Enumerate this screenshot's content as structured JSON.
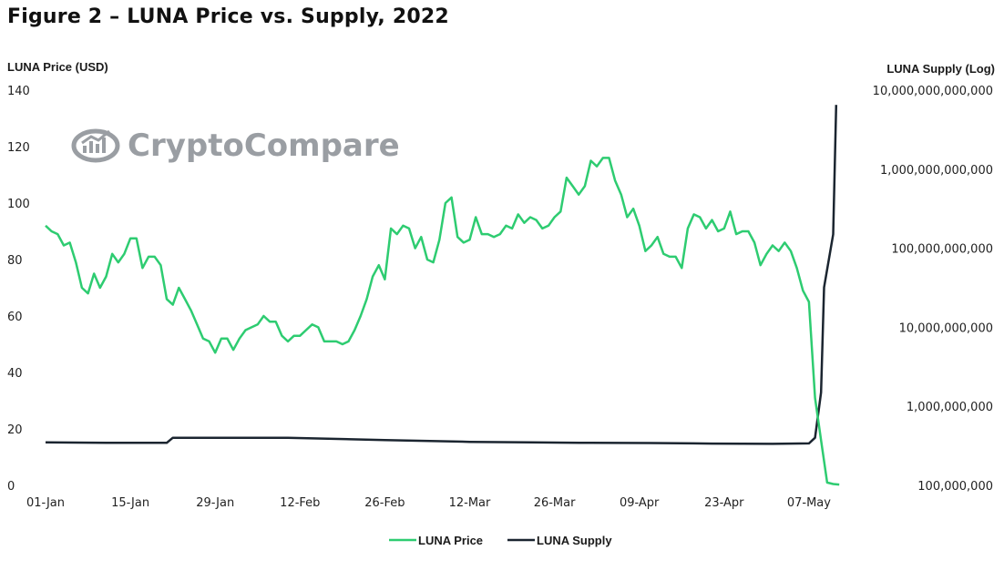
{
  "title": "Figure 2 – LUNA Price vs. Supply, 2022",
  "watermark": "CryptoCompare",
  "colors": {
    "price": "#2ecc71",
    "supply": "#1b2530",
    "watermark": "#9a9ea3"
  },
  "chart_data": {
    "type": "line",
    "title": "Figure 2 – LUNA Price vs. Supply, 2022",
    "xlabel": "",
    "ylabel": "LUNA Price (USD)",
    "y2label": "LUNA Supply (Log)",
    "ylim": [
      0,
      140
    ],
    "y2lim": [
      100000000,
      10000000000000
    ],
    "y2scale": "log",
    "x_ticks": [
      "01-Jan",
      "15-Jan",
      "29-Jan",
      "12-Feb",
      "26-Feb",
      "12-Mar",
      "26-Mar",
      "09-Apr",
      "23-Apr",
      "07-May"
    ],
    "x_tick_day_index": [
      0,
      14,
      28,
      42,
      56,
      70,
      84,
      98,
      112,
      126
    ],
    "y_ticks": [
      "0",
      "20",
      "40",
      "60",
      "80",
      "100",
      "120",
      "140"
    ],
    "y2_ticks": [
      "100,000,000",
      "1,000,000,000",
      "10,000,000,000",
      "100,000,000,000",
      "1,000,000,000,000",
      "10,000,000,000,000"
    ],
    "legend": [
      "LUNA Price",
      "LUNA Supply"
    ],
    "legend_position": "bottom-center",
    "grid": false,
    "series": [
      {
        "name": "LUNA Price",
        "axis": "left",
        "points": [
          [
            0,
            92
          ],
          [
            1,
            90
          ],
          [
            2,
            89
          ],
          [
            3,
            85
          ],
          [
            4,
            86
          ],
          [
            5,
            79
          ],
          [
            6,
            70
          ],
          [
            7,
            68
          ],
          [
            8,
            75
          ],
          [
            9,
            70
          ],
          [
            10,
            74
          ],
          [
            11,
            82
          ],
          [
            12,
            79
          ],
          [
            13,
            82
          ],
          [
            14,
            87.5
          ],
          [
            15,
            87.5
          ],
          [
            16,
            77
          ],
          [
            17,
            81
          ],
          [
            18,
            81
          ],
          [
            19,
            78
          ],
          [
            20,
            66
          ],
          [
            21,
            64
          ],
          [
            22,
            70
          ],
          [
            23,
            66
          ],
          [
            24,
            62
          ],
          [
            25,
            57
          ],
          [
            26,
            52
          ],
          [
            27,
            51
          ],
          [
            28,
            47
          ],
          [
            29,
            52
          ],
          [
            30,
            52
          ],
          [
            31,
            48
          ],
          [
            32,
            52
          ],
          [
            33,
            55
          ],
          [
            34,
            56
          ],
          [
            35,
            57
          ],
          [
            36,
            60
          ],
          [
            37,
            58
          ],
          [
            38,
            58
          ],
          [
            39,
            53
          ],
          [
            40,
            51
          ],
          [
            41,
            53
          ],
          [
            42,
            53
          ],
          [
            43,
            55
          ],
          [
            44,
            57
          ],
          [
            45,
            56
          ],
          [
            46,
            51
          ],
          [
            47,
            51
          ],
          [
            48,
            51
          ],
          [
            49,
            50
          ],
          [
            50,
            51
          ],
          [
            51,
            55
          ],
          [
            52,
            60
          ],
          [
            53,
            66
          ],
          [
            54,
            74
          ],
          [
            55,
            78
          ],
          [
            56,
            73
          ],
          [
            57,
            91
          ],
          [
            58,
            89
          ],
          [
            59,
            92
          ],
          [
            60,
            91
          ],
          [
            61,
            84
          ],
          [
            62,
            88
          ],
          [
            63,
            80
          ],
          [
            64,
            79
          ],
          [
            65,
            87
          ],
          [
            66,
            100
          ],
          [
            67,
            102
          ],
          [
            68,
            88
          ],
          [
            69,
            86
          ],
          [
            70,
            87
          ],
          [
            71,
            95
          ],
          [
            72,
            89
          ],
          [
            73,
            89
          ],
          [
            74,
            88
          ],
          [
            75,
            89
          ],
          [
            76,
            92
          ],
          [
            77,
            91
          ],
          [
            78,
            96
          ],
          [
            79,
            93
          ],
          [
            80,
            95
          ],
          [
            81,
            94
          ],
          [
            82,
            91
          ],
          [
            83,
            92
          ],
          [
            84,
            95
          ],
          [
            85,
            97
          ],
          [
            86,
            109
          ],
          [
            87,
            106
          ],
          [
            88,
            103
          ],
          [
            89,
            106
          ],
          [
            90,
            115
          ],
          [
            91,
            113
          ],
          [
            92,
            116
          ],
          [
            93,
            116
          ],
          [
            94,
            108
          ],
          [
            95,
            103
          ],
          [
            96,
            95
          ],
          [
            97,
            98
          ],
          [
            98,
            92
          ],
          [
            99,
            83
          ],
          [
            100,
            85
          ],
          [
            101,
            88
          ],
          [
            102,
            82
          ],
          [
            103,
            81
          ],
          [
            104,
            81
          ],
          [
            105,
            77
          ],
          [
            106,
            91
          ],
          [
            107,
            96
          ],
          [
            108,
            95
          ],
          [
            109,
            91
          ],
          [
            110,
            94
          ],
          [
            111,
            90
          ],
          [
            112,
            91
          ],
          [
            113,
            97
          ],
          [
            114,
            89
          ],
          [
            115,
            90
          ],
          [
            116,
            90
          ],
          [
            117,
            86
          ],
          [
            118,
            78
          ],
          [
            119,
            82
          ],
          [
            120,
            85
          ],
          [
            121,
            83
          ],
          [
            122,
            86
          ],
          [
            123,
            83
          ],
          [
            124,
            77
          ],
          [
            125,
            69
          ],
          [
            126,
            65
          ],
          [
            127,
            31
          ],
          [
            128,
            16
          ],
          [
            129,
            1
          ],
          [
            130,
            0.5
          ],
          [
            131,
            0.3
          ]
        ]
      },
      {
        "name": "LUNA Supply",
        "axis": "right",
        "points": [
          [
            0,
            350000000
          ],
          [
            10,
            345000000
          ],
          [
            20,
            345000000
          ],
          [
            21,
            400000000
          ],
          [
            40,
            400000000
          ],
          [
            56,
            375000000
          ],
          [
            70,
            355000000
          ],
          [
            80,
            350000000
          ],
          [
            90,
            345000000
          ],
          [
            100,
            343000000
          ],
          [
            110,
            338000000
          ],
          [
            120,
            335000000
          ],
          [
            126,
            340000000
          ],
          [
            127,
            400000000
          ],
          [
            128,
            1500000000
          ],
          [
            128.5,
            32000000000
          ],
          [
            130,
            150000000000
          ],
          [
            130.5,
            6500000000000
          ]
        ]
      }
    ]
  }
}
